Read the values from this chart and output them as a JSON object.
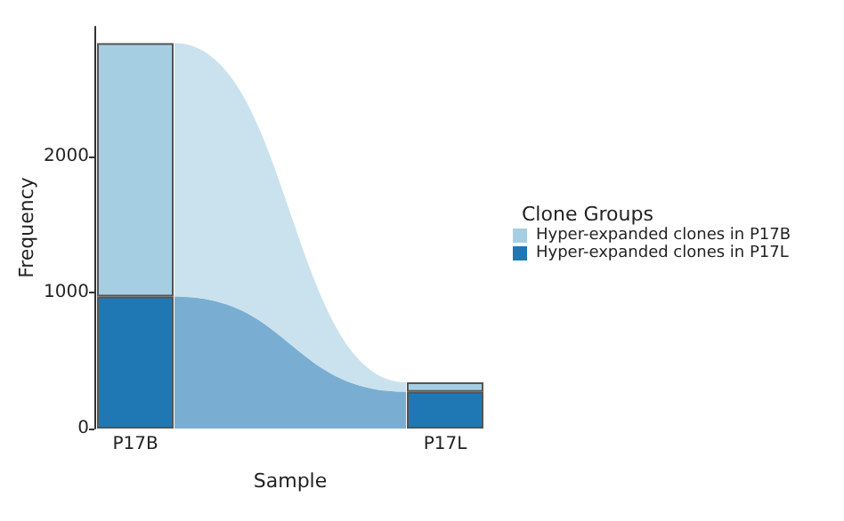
{
  "chart_data": {
    "type": "bar",
    "stacked": true,
    "xlabel": "Sample",
    "ylabel": "Frequency",
    "legend_title": "Clone Groups",
    "legend": "right",
    "grid": false,
    "categories": [
      "P17B",
      "P17L"
    ],
    "series": [
      {
        "name": "Hyper-expanded clones in P17L",
        "color": "#1f78b4",
        "values": [
          970,
          270
        ]
      },
      {
        "name": "Hyper-expanded clones in P17B",
        "color": "#a6cee3",
        "values": [
          1860,
          70
        ]
      }
    ],
    "ylim": [
      0,
      2950
    ],
    "yticks": [
      0,
      1000,
      2000
    ]
  }
}
